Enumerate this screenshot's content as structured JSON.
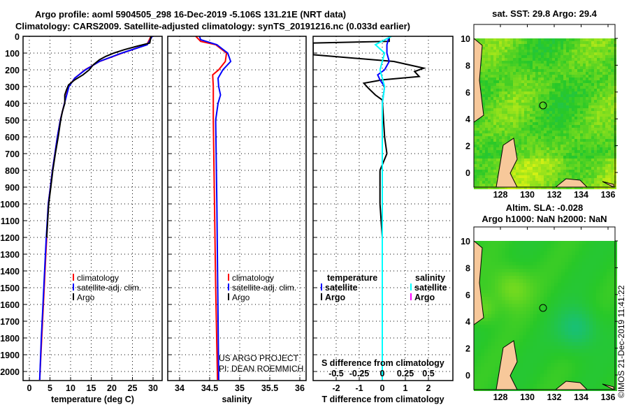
{
  "title_line1": "Argo profile: aoml 5904505_298 16-Dec-2019 -5.106S 131.21E (NRT data)",
  "title_line2": "Climatology: CARS2009. Satellite-adjusted climatology: synTS_20191216.nc (0.033d earlier)",
  "credit_line1": "US ARGO PROJECT",
  "credit_line2": "PI: DEAN ROEMMICH",
  "timestamp": "©IMOS 21-Dec-2019 11:41:22",
  "colors": {
    "climatology": "#ff0000",
    "satellite": "#0000ff",
    "argo": "#000000",
    "sal_satellite": "#00ffff",
    "sal_argo": "#ff00ff",
    "land": "#f7c89a"
  },
  "chart_data": [
    {
      "type": "line",
      "xlabel": "temperature (deg C)",
      "ylabel": "",
      "xlim": [
        -1,
        31
      ],
      "ylim": [
        2050,
        0
      ],
      "xticks": [
        "0",
        "5",
        "10",
        "15",
        "20",
        "25",
        "30"
      ],
      "yticks": [
        "0",
        "100",
        "200",
        "300",
        "400",
        "500",
        "600",
        "700",
        "800",
        "900",
        "1000",
        "1100",
        "1200",
        "1300",
        "1400",
        "1500",
        "1600",
        "1700",
        "1800",
        "1900",
        "2000"
      ],
      "legend": [
        "climatology",
        "satellite-adj. clim.",
        "Argo"
      ],
      "series": [
        {
          "name": "climatology",
          "color": "#ff0000",
          "depth": [
            0,
            50,
            100,
            150,
            200,
            250,
            300,
            400,
            500,
            600,
            700,
            800,
            900,
            1000,
            1200,
            1400,
            1600,
            1800,
            2050
          ],
          "values": [
            29.5,
            28.5,
            22.5,
            17,
            13.5,
            11,
            9.5,
            8.5,
            7.5,
            6.8,
            6.2,
            5.6,
            5.1,
            4.6,
            4.2,
            3.8,
            3.4,
            3.0,
            2.5
          ]
        },
        {
          "name": "satellite-adj. clim.",
          "color": "#0000ff",
          "depth": [
            0,
            50,
            100,
            150,
            200,
            250,
            300,
            400,
            500,
            600,
            700,
            800,
            900,
            1000,
            1200,
            1400,
            1600,
            1800,
            2050
          ],
          "values": [
            29.8,
            28.6,
            22.4,
            17,
            13.6,
            11,
            9.6,
            8.5,
            7.5,
            6.8,
            6.2,
            5.6,
            5.1,
            4.6,
            4.1,
            3.7,
            3.3,
            2.9,
            2.5
          ]
        },
        {
          "name": "Argo",
          "color": "#000000",
          "depth": [
            0,
            40,
            60,
            80,
            100,
            120,
            140,
            170,
            200,
            230,
            260,
            290,
            320,
            350,
            400,
            450,
            500,
            600,
            700,
            800,
            900,
            1000,
            1200
          ],
          "values": [
            29.5,
            29.2,
            26,
            23,
            20.5,
            18.5,
            17,
            15.5,
            14.5,
            13,
            11,
            9.5,
            9,
            8.6,
            8.6,
            8,
            7.6,
            7,
            6.3,
            5.7,
            5.2,
            4.7,
            4.2
          ]
        }
      ]
    },
    {
      "type": "line",
      "xlabel": "salinity",
      "xlim": [
        33.8,
        36.1
      ],
      "ylim": [
        2050,
        0
      ],
      "xticks": [
        "34",
        "34.5",
        "35",
        "35.5",
        "36"
      ],
      "legend": [
        "climatology",
        "satellite-adj. clim.",
        "Argo"
      ],
      "series": [
        {
          "name": "climatology",
          "color": "#ff0000",
          "depth": [
            0,
            30,
            50,
            100,
            150,
            200,
            230,
            300,
            500,
            1000,
            1500,
            2050
          ],
          "values": [
            34.27,
            34.35,
            34.6,
            34.78,
            34.76,
            34.65,
            34.55,
            34.56,
            34.56,
            34.58,
            34.6,
            34.63
          ]
        },
        {
          "name": "satellite-adj. clim.",
          "color": "#0000ff",
          "depth": [
            0,
            20,
            50,
            100,
            150,
            200,
            250,
            300,
            350,
            400,
            500,
            1000,
            2050
          ],
          "values": [
            34.33,
            34.35,
            34.62,
            34.8,
            34.85,
            34.72,
            34.64,
            34.65,
            34.68,
            34.64,
            34.6,
            34.62,
            34.65
          ]
        }
      ]
    },
    {
      "type": "line",
      "xlabel": "T difference from climatology",
      "x2label": "S difference from climatology",
      "xlim": [
        -3,
        3
      ],
      "ylim": [
        2050,
        0
      ],
      "xticks": [
        "-2",
        "-1",
        "0",
        "1",
        "2"
      ],
      "x2ticks": [
        "-0.5",
        "-0.25",
        "0",
        "0.25",
        "0.5"
      ],
      "legend_temperature": {
        "title": "temperature",
        "items": [
          "satellite",
          "Argo"
        ]
      },
      "legend_salinity": {
        "title": "salinity",
        "items": [
          "satellite",
          "Argo"
        ]
      },
      "series": [
        {
          "name": "Argo T",
          "color": "#000000",
          "depth": [
            0,
            30,
            40,
            60,
            110,
            150,
            190,
            210,
            240,
            260,
            280,
            310,
            350,
            380,
            600,
            700,
            800,
            1000,
            1200
          ],
          "values": [
            0.3,
            0.3,
            -3,
            -3,
            -3,
            0.5,
            1.8,
            1.4,
            1.6,
            0,
            -0.8,
            -0.6,
            -0.3,
            0,
            0.1,
            0.2,
            -0.1,
            -0.1,
            0
          ]
        },
        {
          "name": "satellite T",
          "color": "#0000ff",
          "depth": [
            0,
            50,
            100,
            150,
            200,
            230,
            260,
            300,
            400,
            2050
          ],
          "values": [
            0.3,
            0.2,
            0.2,
            0.3,
            0.1,
            -0.2,
            -0.1,
            0.1,
            0,
            0
          ]
        },
        {
          "name": "satellite S",
          "color": "#00ffff",
          "depth": [
            0,
            50,
            100,
            200,
            300,
            400,
            2050
          ],
          "values": [
            0.1,
            -0.075,
            0.025,
            -0.025,
            0.025,
            0,
            0
          ]
        }
      ]
    },
    {
      "type": "heatmap",
      "title": "sat. SST: 29.8 Argo: 29.4",
      "xticks": [
        "128",
        "130",
        "132",
        "134",
        "136"
      ],
      "yticks": [
        "10",
        "8",
        "6",
        "4",
        "2",
        "0"
      ]
    },
    {
      "type": "heatmap",
      "title": "Altim. SLA: -0.028",
      "subtitle": "Argo h1000: NaN h2000: NaN",
      "xticks": [
        "128",
        "130",
        "132",
        "134",
        "136"
      ],
      "yticks": [
        "10",
        "8",
        "6",
        "4",
        "2",
        "0"
      ]
    }
  ]
}
